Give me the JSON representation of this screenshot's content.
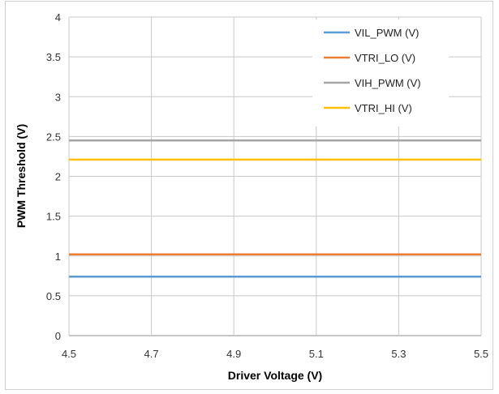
{
  "chart_data": {
    "type": "line",
    "title": "",
    "xlabel": "Driver Voltage (V)",
    "ylabel": "PWM Threshold (V)",
    "xlim": [
      4.5,
      5.5
    ],
    "ylim": [
      0,
      4
    ],
    "x_ticks": [
      "4.5",
      "4.7",
      "4.9",
      "5.1",
      "5.3",
      "5.5"
    ],
    "y_ticks": [
      "0",
      "0.5",
      "1",
      "1.5",
      "2",
      "2.5",
      "3",
      "3.5",
      "4"
    ],
    "grid": true,
    "legend_position": "top-right",
    "series": [
      {
        "name": "VIL_PWM (V)",
        "color": "#5b9bd5",
        "x": [
          4.5,
          5.5
        ],
        "y": [
          0.74,
          0.74
        ]
      },
      {
        "name": "VTRI_LO (V)",
        "color": "#ed7d31",
        "x": [
          4.5,
          5.5
        ],
        "y": [
          1.02,
          1.02
        ]
      },
      {
        "name": "VIH_PWM (V)",
        "color": "#a5a5a5",
        "x": [
          4.5,
          5.5
        ],
        "y": [
          2.45,
          2.45
        ]
      },
      {
        "name": "VTRI_HI (V)",
        "color": "#ffc000",
        "x": [
          4.5,
          5.5
        ],
        "y": [
          2.21,
          2.21
        ]
      }
    ]
  }
}
